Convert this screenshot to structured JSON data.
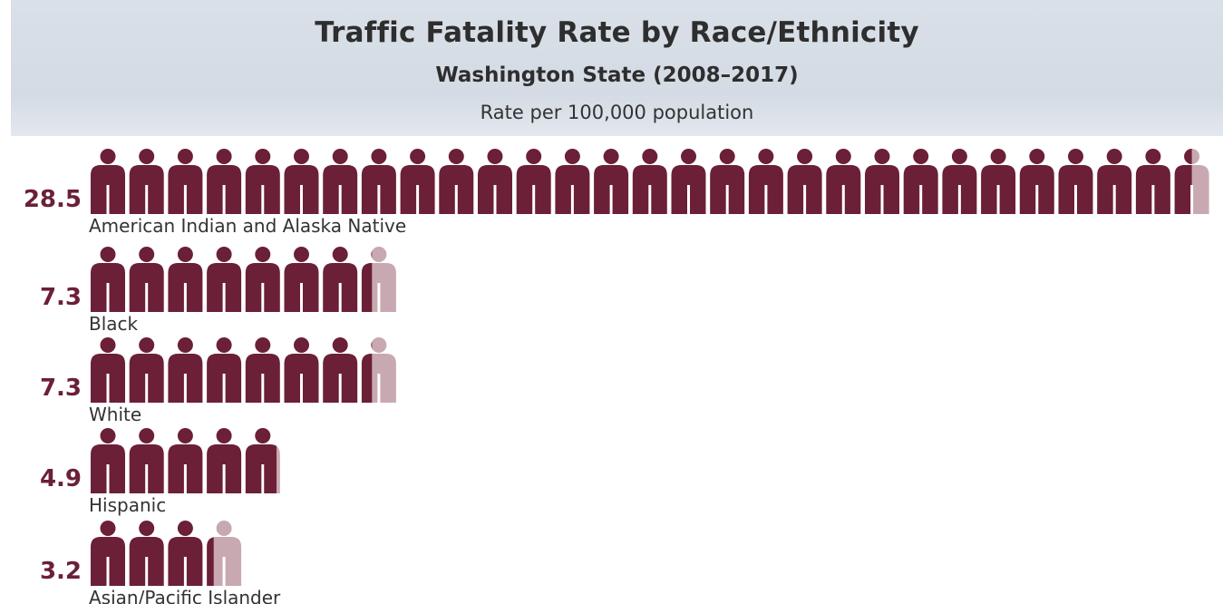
{
  "chart_data": {
    "type": "bar",
    "title": "Traffic Fatality Rate by Race/Ethnicity",
    "subtitle": "Washington State (2008–2017)",
    "unit_label": "Rate per 100,000 population",
    "categories": [
      "American Indian and Alaska Native",
      "Black",
      "White",
      "Hispanic",
      "Asian/Pacific Islander"
    ],
    "values": [
      28.5,
      7.3,
      7.3,
      4.9,
      3.2
    ],
    "value_labels": [
      "28.5",
      "7.3",
      "7.3",
      "4.9",
      "3.2"
    ],
    "icon": "person-icon",
    "icon_unit": 1,
    "colors": {
      "filled": "#6b2037",
      "partial": "#c9a9b1"
    }
  }
}
